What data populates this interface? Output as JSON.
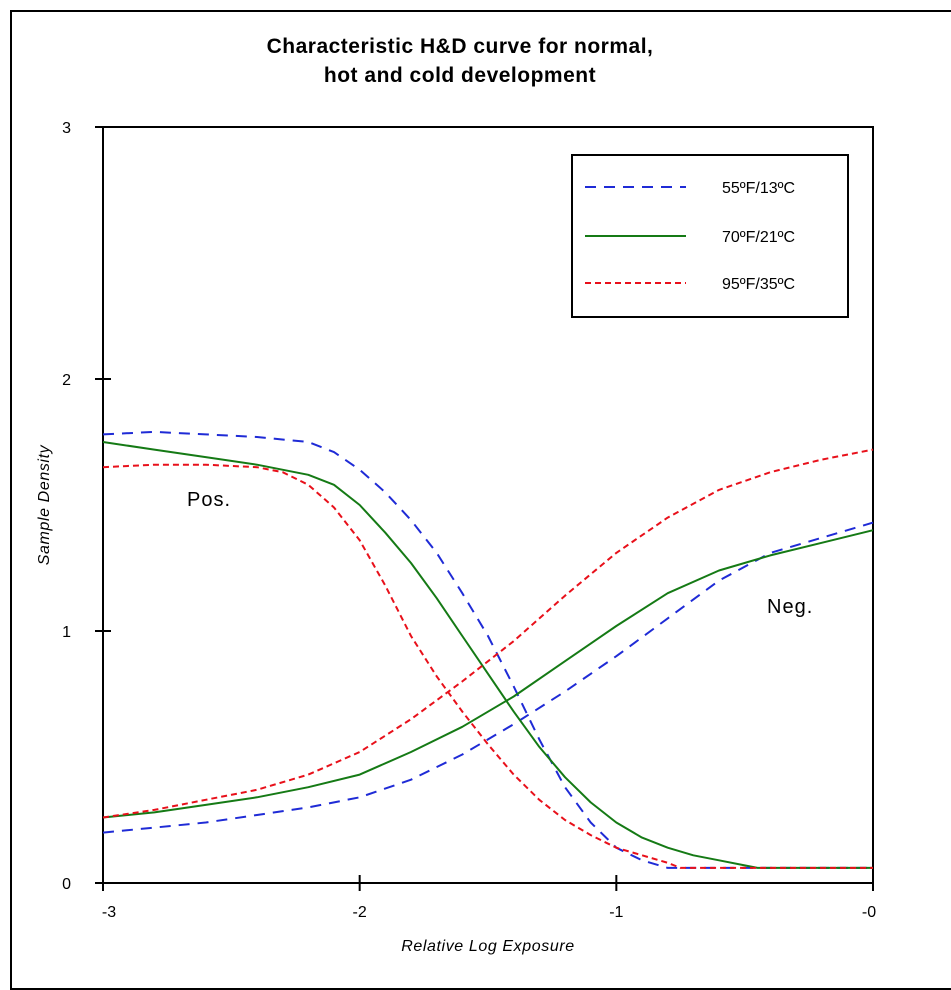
{
  "chart_data": {
    "type": "line",
    "title_line1": "Characteristic H&D curve for normal,",
    "title_line2": "hot and cold development",
    "xlabel": "Relative Log Exposure",
    "ylabel": "Sample Density",
    "xlim": [
      -3,
      0
    ],
    "ylim": [
      0,
      3
    ],
    "x_ticks": [
      -3,
      -2,
      -1,
      0
    ],
    "x_tick_labels": [
      "-3",
      "-2",
      "-1",
      "-0"
    ],
    "y_ticks": [
      0,
      1,
      2,
      3
    ],
    "y_tick_labels": [
      "0",
      "1",
      "2",
      "3"
    ],
    "grid": false,
    "legend_position": "top-right",
    "annotations": {
      "pos": "Pos.",
      "neg": "Neg."
    },
    "series": [
      {
        "name": "55ºF/13ºC",
        "color": "#1f2bd6",
        "dash": "dashed",
        "curve": "positive",
        "x": [
          -3,
          -2.8,
          -2.6,
          -2.4,
          -2.2,
          -2.1,
          -2.0,
          -1.9,
          -1.8,
          -1.7,
          -1.6,
          -1.5,
          -1.4,
          -1.3,
          -1.2,
          -1.1,
          -1.0,
          -0.9,
          -0.8,
          -0.75,
          -0.6,
          -0.4,
          -0.2,
          0
        ],
        "y": [
          1.78,
          1.79,
          1.78,
          1.77,
          1.75,
          1.71,
          1.64,
          1.55,
          1.44,
          1.31,
          1.15,
          0.98,
          0.78,
          0.57,
          0.38,
          0.24,
          0.14,
          0.09,
          0.06,
          0.06,
          0.06,
          0.06,
          0.06,
          0.06
        ]
      },
      {
        "name": "55ºF/13ºC",
        "color": "#1f2bd6",
        "dash": "dashed",
        "curve": "negative",
        "x": [
          -3,
          -2.8,
          -2.6,
          -2.4,
          -2.2,
          -2.0,
          -1.8,
          -1.6,
          -1.4,
          -1.2,
          -1.0,
          -0.8,
          -0.6,
          -0.4,
          -0.2,
          0
        ],
        "y": [
          0.2,
          0.22,
          0.24,
          0.27,
          0.3,
          0.34,
          0.41,
          0.51,
          0.63,
          0.76,
          0.9,
          1.05,
          1.2,
          1.31,
          1.37,
          1.43
        ]
      },
      {
        "name": "70ºF/21ºC",
        "color": "#157a15",
        "dash": "solid",
        "curve": "positive",
        "x": [
          -3,
          -2.8,
          -2.6,
          -2.4,
          -2.2,
          -2.1,
          -2.0,
          -1.9,
          -1.8,
          -1.7,
          -1.6,
          -1.5,
          -1.4,
          -1.3,
          -1.2,
          -1.1,
          -1.0,
          -0.9,
          -0.8,
          -0.7,
          -0.6,
          -0.5,
          -0.45,
          -0.2,
          0
        ],
        "y": [
          1.75,
          1.72,
          1.69,
          1.66,
          1.62,
          1.58,
          1.5,
          1.39,
          1.27,
          1.13,
          0.98,
          0.83,
          0.68,
          0.54,
          0.42,
          0.32,
          0.24,
          0.18,
          0.14,
          0.11,
          0.09,
          0.07,
          0.06,
          0.06,
          0.06
        ]
      },
      {
        "name": "70ºF/21ºC",
        "color": "#157a15",
        "dash": "solid",
        "curve": "negative",
        "x": [
          -3,
          -2.8,
          -2.6,
          -2.4,
          -2.2,
          -2.0,
          -1.8,
          -1.6,
          -1.4,
          -1.2,
          -1.0,
          -0.8,
          -0.6,
          -0.4,
          -0.2,
          0
        ],
        "y": [
          0.26,
          0.28,
          0.31,
          0.34,
          0.38,
          0.43,
          0.52,
          0.62,
          0.74,
          0.88,
          1.02,
          1.15,
          1.24,
          1.3,
          1.35,
          1.4
        ]
      },
      {
        "name": "95ºF/35ºC",
        "color": "#e8101a",
        "dash": "dotted-dash",
        "curve": "positive",
        "x": [
          -3,
          -2.8,
          -2.6,
          -2.4,
          -2.3,
          -2.2,
          -2.1,
          -2.0,
          -1.9,
          -1.8,
          -1.7,
          -1.6,
          -1.5,
          -1.4,
          -1.3,
          -1.2,
          -1.1,
          -1.0,
          -0.9,
          -0.8,
          -0.75,
          -0.5,
          -0.2,
          0
        ],
        "y": [
          1.65,
          1.66,
          1.66,
          1.65,
          1.63,
          1.58,
          1.49,
          1.36,
          1.18,
          0.98,
          0.82,
          0.68,
          0.55,
          0.43,
          0.33,
          0.25,
          0.19,
          0.14,
          0.11,
          0.08,
          0.06,
          0.06,
          0.06,
          0.06
        ]
      },
      {
        "name": "95ºF/35ºC",
        "color": "#e8101a",
        "dash": "dotted-dash",
        "curve": "negative",
        "x": [
          -3,
          -2.8,
          -2.6,
          -2.4,
          -2.2,
          -2.0,
          -1.8,
          -1.6,
          -1.4,
          -1.2,
          -1.0,
          -0.8,
          -0.6,
          -0.4,
          -0.2,
          0
        ],
        "y": [
          0.26,
          0.29,
          0.33,
          0.37,
          0.43,
          0.52,
          0.65,
          0.8,
          0.96,
          1.14,
          1.31,
          1.45,
          1.56,
          1.63,
          1.68,
          1.72
        ]
      }
    ],
    "legend": [
      {
        "label": "55ºF/13ºC",
        "color": "#1f2bd6",
        "dash": "dashed"
      },
      {
        "label": "70ºF/21ºC",
        "color": "#157a15",
        "dash": "solid"
      },
      {
        "label": "95ºF/35ºC",
        "color": "#e8101a",
        "dash": "dotted-dash"
      }
    ]
  }
}
